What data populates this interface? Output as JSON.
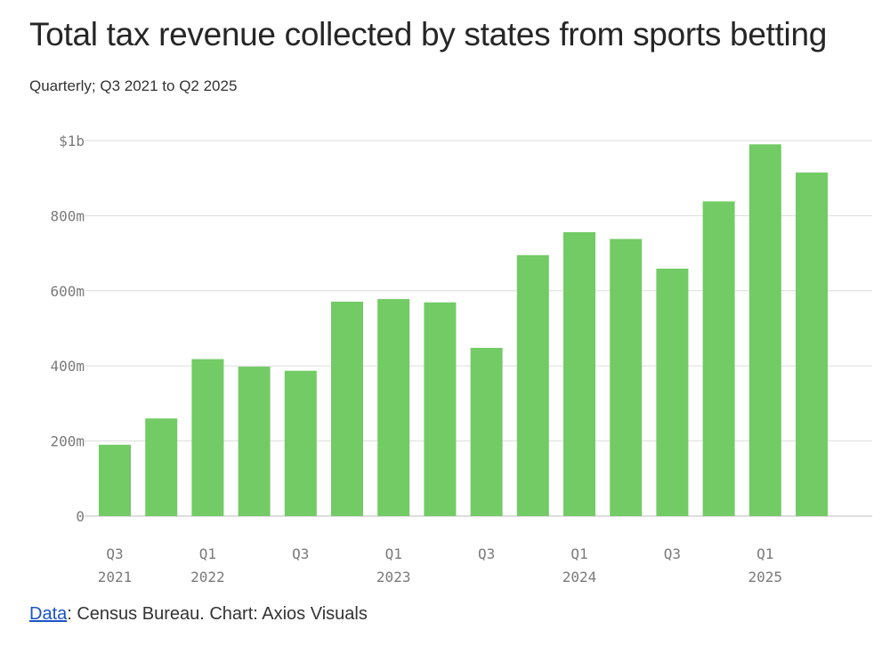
{
  "title": "Total tax revenue collected by states from sports betting",
  "subtitle": "Quarterly; Q3 2021 to Q2 2025",
  "footer": {
    "link_label": "Data",
    "source_text": ": Census Bureau. Chart: Axios Visuals"
  },
  "colors": {
    "bar": "#72cb65",
    "grid": "#dddddd",
    "axis_text": "#7a7a7a"
  },
  "chart_data": {
    "type": "bar",
    "title": "Total tax revenue collected by states from sports betting",
    "subtitle": "Quarterly; Q3 2021 to Q2 2025",
    "xlabel": "",
    "ylabel": "",
    "ylim": [
      0,
      1000
    ],
    "unit": "millions of dollars",
    "grid": true,
    "yticks": [
      {
        "value": 0,
        "label": "0"
      },
      {
        "value": 200,
        "label": "200m"
      },
      {
        "value": 400,
        "label": "400m"
      },
      {
        "value": 600,
        "label": "600m"
      },
      {
        "value": 800,
        "label": "800m"
      },
      {
        "value": 1000,
        "label": "$1b"
      }
    ],
    "categories": [
      "Q3 2021",
      "Q4 2021",
      "Q1 2022",
      "Q2 2022",
      "Q3 2022",
      "Q4 2022",
      "Q1 2023",
      "Q2 2023",
      "Q3 2023",
      "Q4 2023",
      "Q1 2024",
      "Q2 2024",
      "Q3 2024",
      "Q4 2024",
      "Q1 2025",
      "Q2 2025"
    ],
    "values": [
      190,
      260,
      418,
      398,
      387,
      571,
      578,
      569,
      448,
      695,
      756,
      738,
      659,
      838,
      990,
      915
    ],
    "xticks": [
      {
        "index": 0,
        "quarter": "Q3",
        "year": "2021"
      },
      {
        "index": 2,
        "quarter": "Q1",
        "year": "2022"
      },
      {
        "index": 4,
        "quarter": "Q3",
        "year": ""
      },
      {
        "index": 6,
        "quarter": "Q1",
        "year": "2023"
      },
      {
        "index": 8,
        "quarter": "Q3",
        "year": ""
      },
      {
        "index": 10,
        "quarter": "Q1",
        "year": "2024"
      },
      {
        "index": 12,
        "quarter": "Q3",
        "year": ""
      },
      {
        "index": 14,
        "quarter": "Q1",
        "year": "2025"
      }
    ]
  }
}
